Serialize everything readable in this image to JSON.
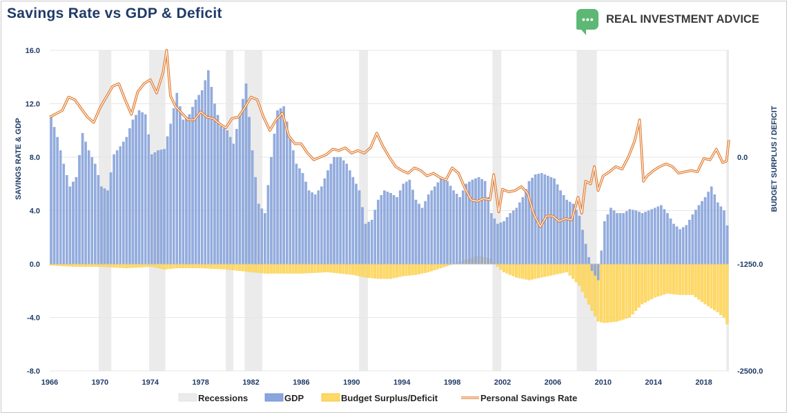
{
  "title": "Savings Rate vs GDP & Deficit",
  "brand": {
    "part1": "REAL ",
    "part2": "INVESTMENT ",
    "part3": "ADVICE",
    "icon": "chat-bubble-logo-icon"
  },
  "chart_data": {
    "type": "bar+line",
    "title": "Savings Rate vs GDP & Deficit",
    "ylabel_left": "SAVINGS RATE & GDP",
    "ylabel_right": "BUDGET SURPLUS / DEFICIT",
    "ylim_left": [
      -8.0,
      16.0
    ],
    "ylim_right": [
      -2500.0,
      1250.0
    ],
    "yticks_left": [
      "16.0",
      "12.0",
      "8.0",
      "4.0",
      "0.0",
      "-4.0",
      "-8.0"
    ],
    "yticks_right": [
      "0.0",
      "-1250.0",
      "-2500.0"
    ],
    "xlim": [
      1966,
      2020
    ],
    "xticks": [
      "1966",
      "1970",
      "1974",
      "1978",
      "1982",
      "1986",
      "1990",
      "1994",
      "1998",
      "2002",
      "2006",
      "2010",
      "2014",
      "2018"
    ],
    "legend": [
      "Recessions",
      "GDP",
      "Budget Surplus/Deficit",
      "Personal Savings Rate"
    ],
    "colors": {
      "recession": "#ebebeb",
      "gdp": "#8aa6dc",
      "gdp_edge": "#6f8fd0",
      "deficit": "#ffd966",
      "deficit_edge": "#f2c230",
      "savings": "#e07a2e",
      "axis_text": "#1f3b67"
    },
    "recessions": [
      [
        1969.9,
        1970.9
      ],
      [
        1973.9,
        1975.2
      ],
      [
        1980.0,
        1980.6
      ],
      [
        1981.5,
        1982.9
      ],
      [
        1990.6,
        1991.3
      ],
      [
        2001.2,
        2001.9
      ],
      [
        2007.9,
        2009.5
      ],
      [
        2019.8,
        2020.0
      ]
    ],
    "gdp": [
      [
        1966,
        11.0
      ],
      [
        1966.5,
        9.5
      ],
      [
        1967,
        7.5
      ],
      [
        1967.5,
        5.8
      ],
      [
        1968,
        6.5
      ],
      [
        1968.5,
        9.8
      ],
      [
        1969,
        8.5
      ],
      [
        1969.5,
        7.5
      ],
      [
        1970,
        5.8
      ],
      [
        1970.5,
        5.5
      ],
      [
        1971,
        8.2
      ],
      [
        1971.5,
        8.8
      ],
      [
        1972,
        9.5
      ],
      [
        1972.5,
        10.8
      ],
      [
        1973,
        11.5
      ],
      [
        1973.5,
        11.2
      ],
      [
        1974,
        8.2
      ],
      [
        1974.5,
        8.5
      ],
      [
        1975,
        8.6
      ],
      [
        1975.5,
        10.5
      ],
      [
        1976,
        12.8
      ],
      [
        1976.5,
        10.8
      ],
      [
        1977,
        11.2
      ],
      [
        1977.5,
        12.3
      ],
      [
        1978,
        13.0
      ],
      [
        1978.5,
        14.5
      ],
      [
        1979,
        12.0
      ],
      [
        1979.5,
        10.3
      ],
      [
        1980,
        10.0
      ],
      [
        1980.5,
        9.0
      ],
      [
        1981,
        11.2
      ],
      [
        1981.5,
        13.5
      ],
      [
        1982,
        8.5
      ],
      [
        1982.5,
        4.5
      ],
      [
        1983,
        3.8
      ],
      [
        1983.5,
        8.0
      ],
      [
        1984,
        11.5
      ],
      [
        1984.5,
        11.8
      ],
      [
        1985,
        9.5
      ],
      [
        1985.5,
        7.5
      ],
      [
        1986,
        6.8
      ],
      [
        1986.5,
        5.5
      ],
      [
        1987,
        5.2
      ],
      [
        1987.5,
        5.8
      ],
      [
        1988,
        7.0
      ],
      [
        1988.5,
        8.0
      ],
      [
        1989,
        8.0
      ],
      [
        1989.5,
        7.5
      ],
      [
        1990,
        6.5
      ],
      [
        1990.5,
        5.5
      ],
      [
        1991,
        3.0
      ],
      [
        1991.5,
        3.3
      ],
      [
        1992,
        4.8
      ],
      [
        1992.5,
        5.5
      ],
      [
        1993,
        5.3
      ],
      [
        1993.5,
        5.0
      ],
      [
        1994,
        6.0
      ],
      [
        1994.5,
        6.3
      ],
      [
        1995,
        4.8
      ],
      [
        1995.5,
        4.2
      ],
      [
        1996,
        5.2
      ],
      [
        1996.5,
        5.8
      ],
      [
        1997,
        6.4
      ],
      [
        1997.5,
        6.2
      ],
      [
        1998,
        5.5
      ],
      [
        1998.5,
        5.0
      ],
      [
        1999,
        6.0
      ],
      [
        1999.5,
        6.3
      ],
      [
        2000,
        6.5
      ],
      [
        2000.5,
        6.2
      ],
      [
        2001,
        3.8
      ],
      [
        2001.5,
        3.0
      ],
      [
        2002,
        3.2
      ],
      [
        2002.5,
        3.8
      ],
      [
        2003,
        4.2
      ],
      [
        2003.5,
        5.0
      ],
      [
        2004,
        6.2
      ],
      [
        2004.5,
        6.7
      ],
      [
        2005,
        6.8
      ],
      [
        2005.5,
        6.6
      ],
      [
        2006,
        6.4
      ],
      [
        2006.5,
        5.5
      ],
      [
        2007,
        4.8
      ],
      [
        2007.5,
        4.5
      ],
      [
        2008,
        3.6
      ],
      [
        2008.5,
        1.5
      ],
      [
        2009,
        -0.5
      ],
      [
        2009.5,
        -1.2
      ],
      [
        2010,
        3.2
      ],
      [
        2010.5,
        4.2
      ],
      [
        2011,
        3.8
      ],
      [
        2011.5,
        3.8
      ],
      [
        2012,
        4.1
      ],
      [
        2012.5,
        4.0
      ],
      [
        2013,
        3.8
      ],
      [
        2013.5,
        4.0
      ],
      [
        2014,
        4.2
      ],
      [
        2014.5,
        4.4
      ],
      [
        2015,
        3.8
      ],
      [
        2015.5,
        3.0
      ],
      [
        2016,
        2.6
      ],
      [
        2016.5,
        2.9
      ],
      [
        2017,
        3.7
      ],
      [
        2017.5,
        4.4
      ],
      [
        2018,
        5.0
      ],
      [
        2018.5,
        5.8
      ],
      [
        2019,
        4.6
      ],
      [
        2019.5,
        4.0
      ],
      [
        2019.9,
        2.2
      ]
    ],
    "deficit": [
      [
        1966,
        -0.1
      ],
      [
        1968,
        -0.2
      ],
      [
        1970,
        -0.2
      ],
      [
        1972,
        -0.3
      ],
      [
        1974,
        -0.2
      ],
      [
        1975,
        -0.4
      ],
      [
        1976,
        -0.3
      ],
      [
        1978,
        -0.3
      ],
      [
        1980,
        -0.4
      ],
      [
        1982,
        -0.6
      ],
      [
        1983,
        -0.7
      ],
      [
        1985,
        -0.7
      ],
      [
        1986,
        -0.7
      ],
      [
        1988,
        -0.6
      ],
      [
        1990,
        -0.8
      ],
      [
        1991,
        -1.0
      ],
      [
        1992,
        -1.1
      ],
      [
        1993,
        -1.1
      ],
      [
        1994,
        -0.9
      ],
      [
        1995,
        -0.8
      ],
      [
        1996,
        -0.6
      ],
      [
        1997,
        -0.3
      ],
      [
        1998,
        0.0
      ],
      [
        1999,
        0.3
      ],
      [
        2000,
        0.6
      ],
      [
        2001,
        0.4
      ],
      [
        2001.6,
        -0.3
      ],
      [
        2002,
        -0.6
      ],
      [
        2003,
        -1.0
      ],
      [
        2004,
        -1.2
      ],
      [
        2005,
        -1.0
      ],
      [
        2006,
        -0.8
      ],
      [
        2007,
        -0.6
      ],
      [
        2008,
        -1.6
      ],
      [
        2009,
        -3.5
      ],
      [
        2009.5,
        -4.3
      ],
      [
        2010,
        -4.4
      ],
      [
        2011,
        -4.3
      ],
      [
        2012,
        -4.0
      ],
      [
        2013,
        -3.0
      ],
      [
        2014,
        -2.5
      ],
      [
        2015,
        -2.2
      ],
      [
        2016,
        -2.3
      ],
      [
        2017,
        -2.3
      ],
      [
        2018,
        -3.0
      ],
      [
        2019,
        -3.6
      ],
      [
        2019.5,
        -4.0
      ],
      [
        2019.9,
        -4.8
      ]
    ],
    "savings": [
      [
        1966,
        11.0
      ],
      [
        1967,
        11.5
      ],
      [
        1967.5,
        12.5
      ],
      [
        1968,
        12.3
      ],
      [
        1969,
        11.0
      ],
      [
        1969.5,
        10.6
      ],
      [
        1970,
        11.7
      ],
      [
        1970.5,
        12.5
      ],
      [
        1971,
        13.3
      ],
      [
        1971.5,
        13.5
      ],
      [
        1972,
        12.3
      ],
      [
        1972.5,
        11.2
      ],
      [
        1973,
        12.9
      ],
      [
        1973.5,
        13.5
      ],
      [
        1974,
        13.8
      ],
      [
        1974.5,
        12.8
      ],
      [
        1975,
        14.3
      ],
      [
        1975.3,
        16.0
      ],
      [
        1975.6,
        12.6
      ],
      [
        1976,
        11.8
      ],
      [
        1976.5,
        11.3
      ],
      [
        1977,
        10.8
      ],
      [
        1977.5,
        10.8
      ],
      [
        1978,
        11.4
      ],
      [
        1978.5,
        11.0
      ],
      [
        1979,
        10.9
      ],
      [
        1979.5,
        10.5
      ],
      [
        1980,
        10.2
      ],
      [
        1980.5,
        10.9
      ],
      [
        1981,
        11.0
      ],
      [
        1981.5,
        11.7
      ],
      [
        1982,
        12.5
      ],
      [
        1982.5,
        12.3
      ],
      [
        1983,
        11.0
      ],
      [
        1983.5,
        10.0
      ],
      [
        1984,
        10.8
      ],
      [
        1984.5,
        11.3
      ],
      [
        1985,
        9.6
      ],
      [
        1985.5,
        9.0
      ],
      [
        1986,
        9.0
      ],
      [
        1986.5,
        8.3
      ],
      [
        1987,
        7.8
      ],
      [
        1987.5,
        8.0
      ],
      [
        1988,
        8.2
      ],
      [
        1988.5,
        8.6
      ],
      [
        1989,
        8.5
      ],
      [
        1989.5,
        8.7
      ],
      [
        1990,
        8.3
      ],
      [
        1990.5,
        8.5
      ],
      [
        1991,
        8.3
      ],
      [
        1991.5,
        8.7
      ],
      [
        1992,
        9.8
      ],
      [
        1992.5,
        8.8
      ],
      [
        1993,
        8.0
      ],
      [
        1993.5,
        7.3
      ],
      [
        1994,
        7.0
      ],
      [
        1994.5,
        6.8
      ],
      [
        1995,
        7.2
      ],
      [
        1995.5,
        7.0
      ],
      [
        1996,
        6.6
      ],
      [
        1996.5,
        6.8
      ],
      [
        1997,
        6.5
      ],
      [
        1997.5,
        6.3
      ],
      [
        1998,
        7.2
      ],
      [
        1998.5,
        6.8
      ],
      [
        1999,
        5.7
      ],
      [
        1999.5,
        4.8
      ],
      [
        2000,
        4.7
      ],
      [
        2000.5,
        4.9
      ],
      [
        2001,
        4.8
      ],
      [
        2001.3,
        6.7
      ],
      [
        2001.7,
        3.9
      ],
      [
        2002,
        5.6
      ],
      [
        2002.5,
        5.4
      ],
      [
        2003,
        5.5
      ],
      [
        2003.5,
        5.8
      ],
      [
        2004,
        5.3
      ],
      [
        2004.5,
        3.7
      ],
      [
        2005,
        2.8
      ],
      [
        2005.5,
        3.6
      ],
      [
        2006,
        3.6
      ],
      [
        2006.5,
        3.2
      ],
      [
        2007,
        3.4
      ],
      [
        2007.5,
        3.3
      ],
      [
        2008,
        5.0
      ],
      [
        2008.3,
        3.8
      ],
      [
        2008.6,
        6.2
      ],
      [
        2009,
        6.0
      ],
      [
        2009.3,
        7.3
      ],
      [
        2009.6,
        5.5
      ],
      [
        2010,
        6.6
      ],
      [
        2010.5,
        6.9
      ],
      [
        2011,
        7.3
      ],
      [
        2011.5,
        7.1
      ],
      [
        2012,
        8.0
      ],
      [
        2012.5,
        9.2
      ],
      [
        2012.9,
        10.8
      ],
      [
        2013.2,
        6.2
      ],
      [
        2013.5,
        6.6
      ],
      [
        2014,
        7.0
      ],
      [
        2014.5,
        7.3
      ],
      [
        2015,
        7.5
      ],
      [
        2015.5,
        7.3
      ],
      [
        2016,
        6.8
      ],
      [
        2016.5,
        6.9
      ],
      [
        2017,
        7.0
      ],
      [
        2017.5,
        6.9
      ],
      [
        2018,
        7.9
      ],
      [
        2018.5,
        7.8
      ],
      [
        2019,
        8.6
      ],
      [
        2019.5,
        7.6
      ],
      [
        2019.8,
        7.7
      ],
      [
        2020,
        9.3
      ]
    ]
  }
}
